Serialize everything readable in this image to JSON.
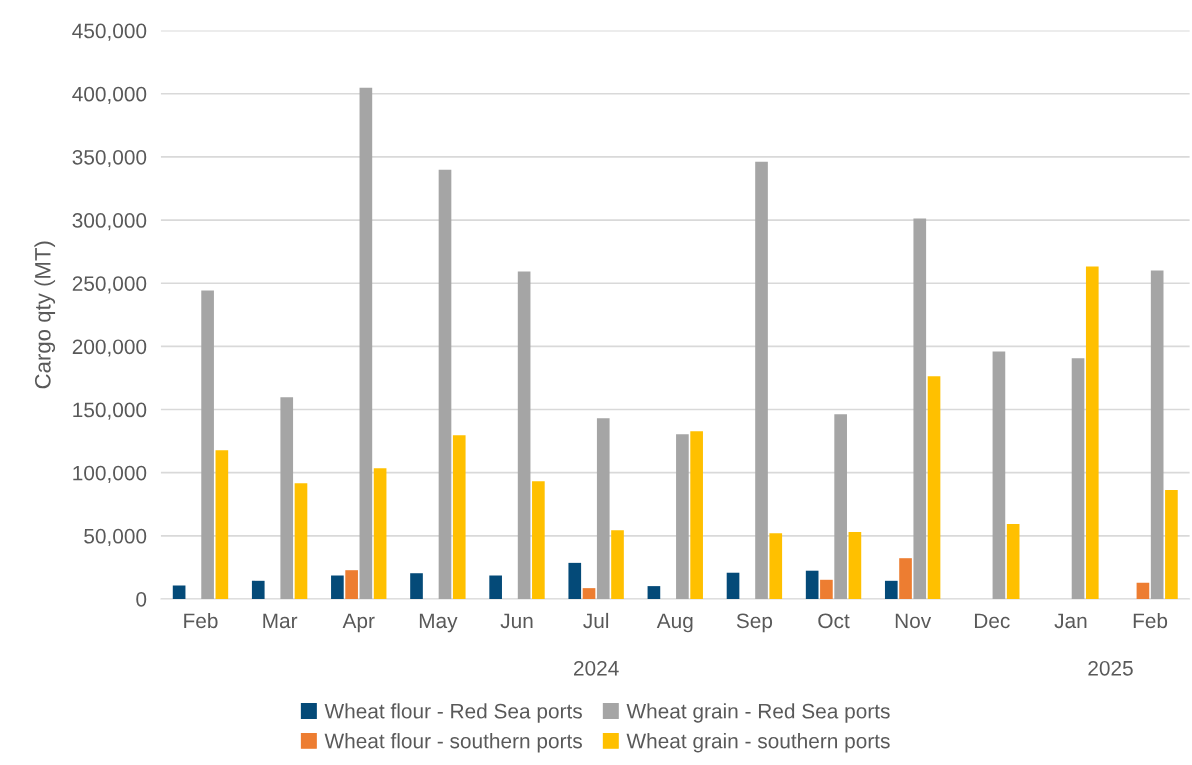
{
  "chart_data": {
    "type": "bar",
    "ylabel": "Cargo qty (MT)",
    "categories": [
      "Feb",
      "Mar",
      "Apr",
      "May",
      "Jun",
      "Jul",
      "Aug",
      "Sep",
      "Oct",
      "Nov",
      "Dec",
      "Jan",
      "Feb"
    ],
    "series": [
      {
        "name": "Wheat flour - Red Sea ports",
        "color": "#044a78",
        "values": [
          10700,
          14400,
          18600,
          20400,
          18600,
          28600,
          10200,
          20800,
          22400,
          14400,
          null,
          null,
          null
        ]
      },
      {
        "name": "Wheat flour - southern ports",
        "color": "#ed7d31",
        "values": [
          null,
          null,
          22800,
          null,
          null,
          8600,
          null,
          null,
          15200,
          32300,
          null,
          null,
          12800
        ]
      },
      {
        "name": "Wheat grain - Red Sea ports",
        "color": "#a5a5a5",
        "values": [
          244300,
          159700,
          404700,
          339900,
          259300,
          143100,
          130400,
          346200,
          146200,
          301200,
          196000,
          190500,
          260100
        ]
      },
      {
        "name": "Wheat grain - southern ports",
        "color": "#ffc000",
        "values": [
          117800,
          91700,
          103600,
          129600,
          93300,
          54500,
          132800,
          52100,
          53100,
          176300,
          59300,
          263200,
          86200
        ]
      }
    ],
    "annotations": [
      "2024",
      "2025"
    ],
    "ylim": [
      0,
      450000
    ],
    "yticks": [
      0,
      {
        "value": 50000,
        "label": "50,000"
      },
      {
        "value": 100000,
        "label": "100,000"
      },
      {
        "value": 150000,
        "label": "150,000"
      },
      {
        "value": 200000,
        "label": "200,000"
      },
      {
        "value": 250000,
        "label": "250,000"
      },
      {
        "value": 300000,
        "label": "300,000"
      },
      {
        "value": 350000,
        "label": "350,000"
      },
      {
        "value": 400000,
        "label": "400,000"
      },
      {
        "value": 450000,
        "label": "450,000"
      }
    ],
    "grid": "y",
    "legend": "bottom"
  }
}
